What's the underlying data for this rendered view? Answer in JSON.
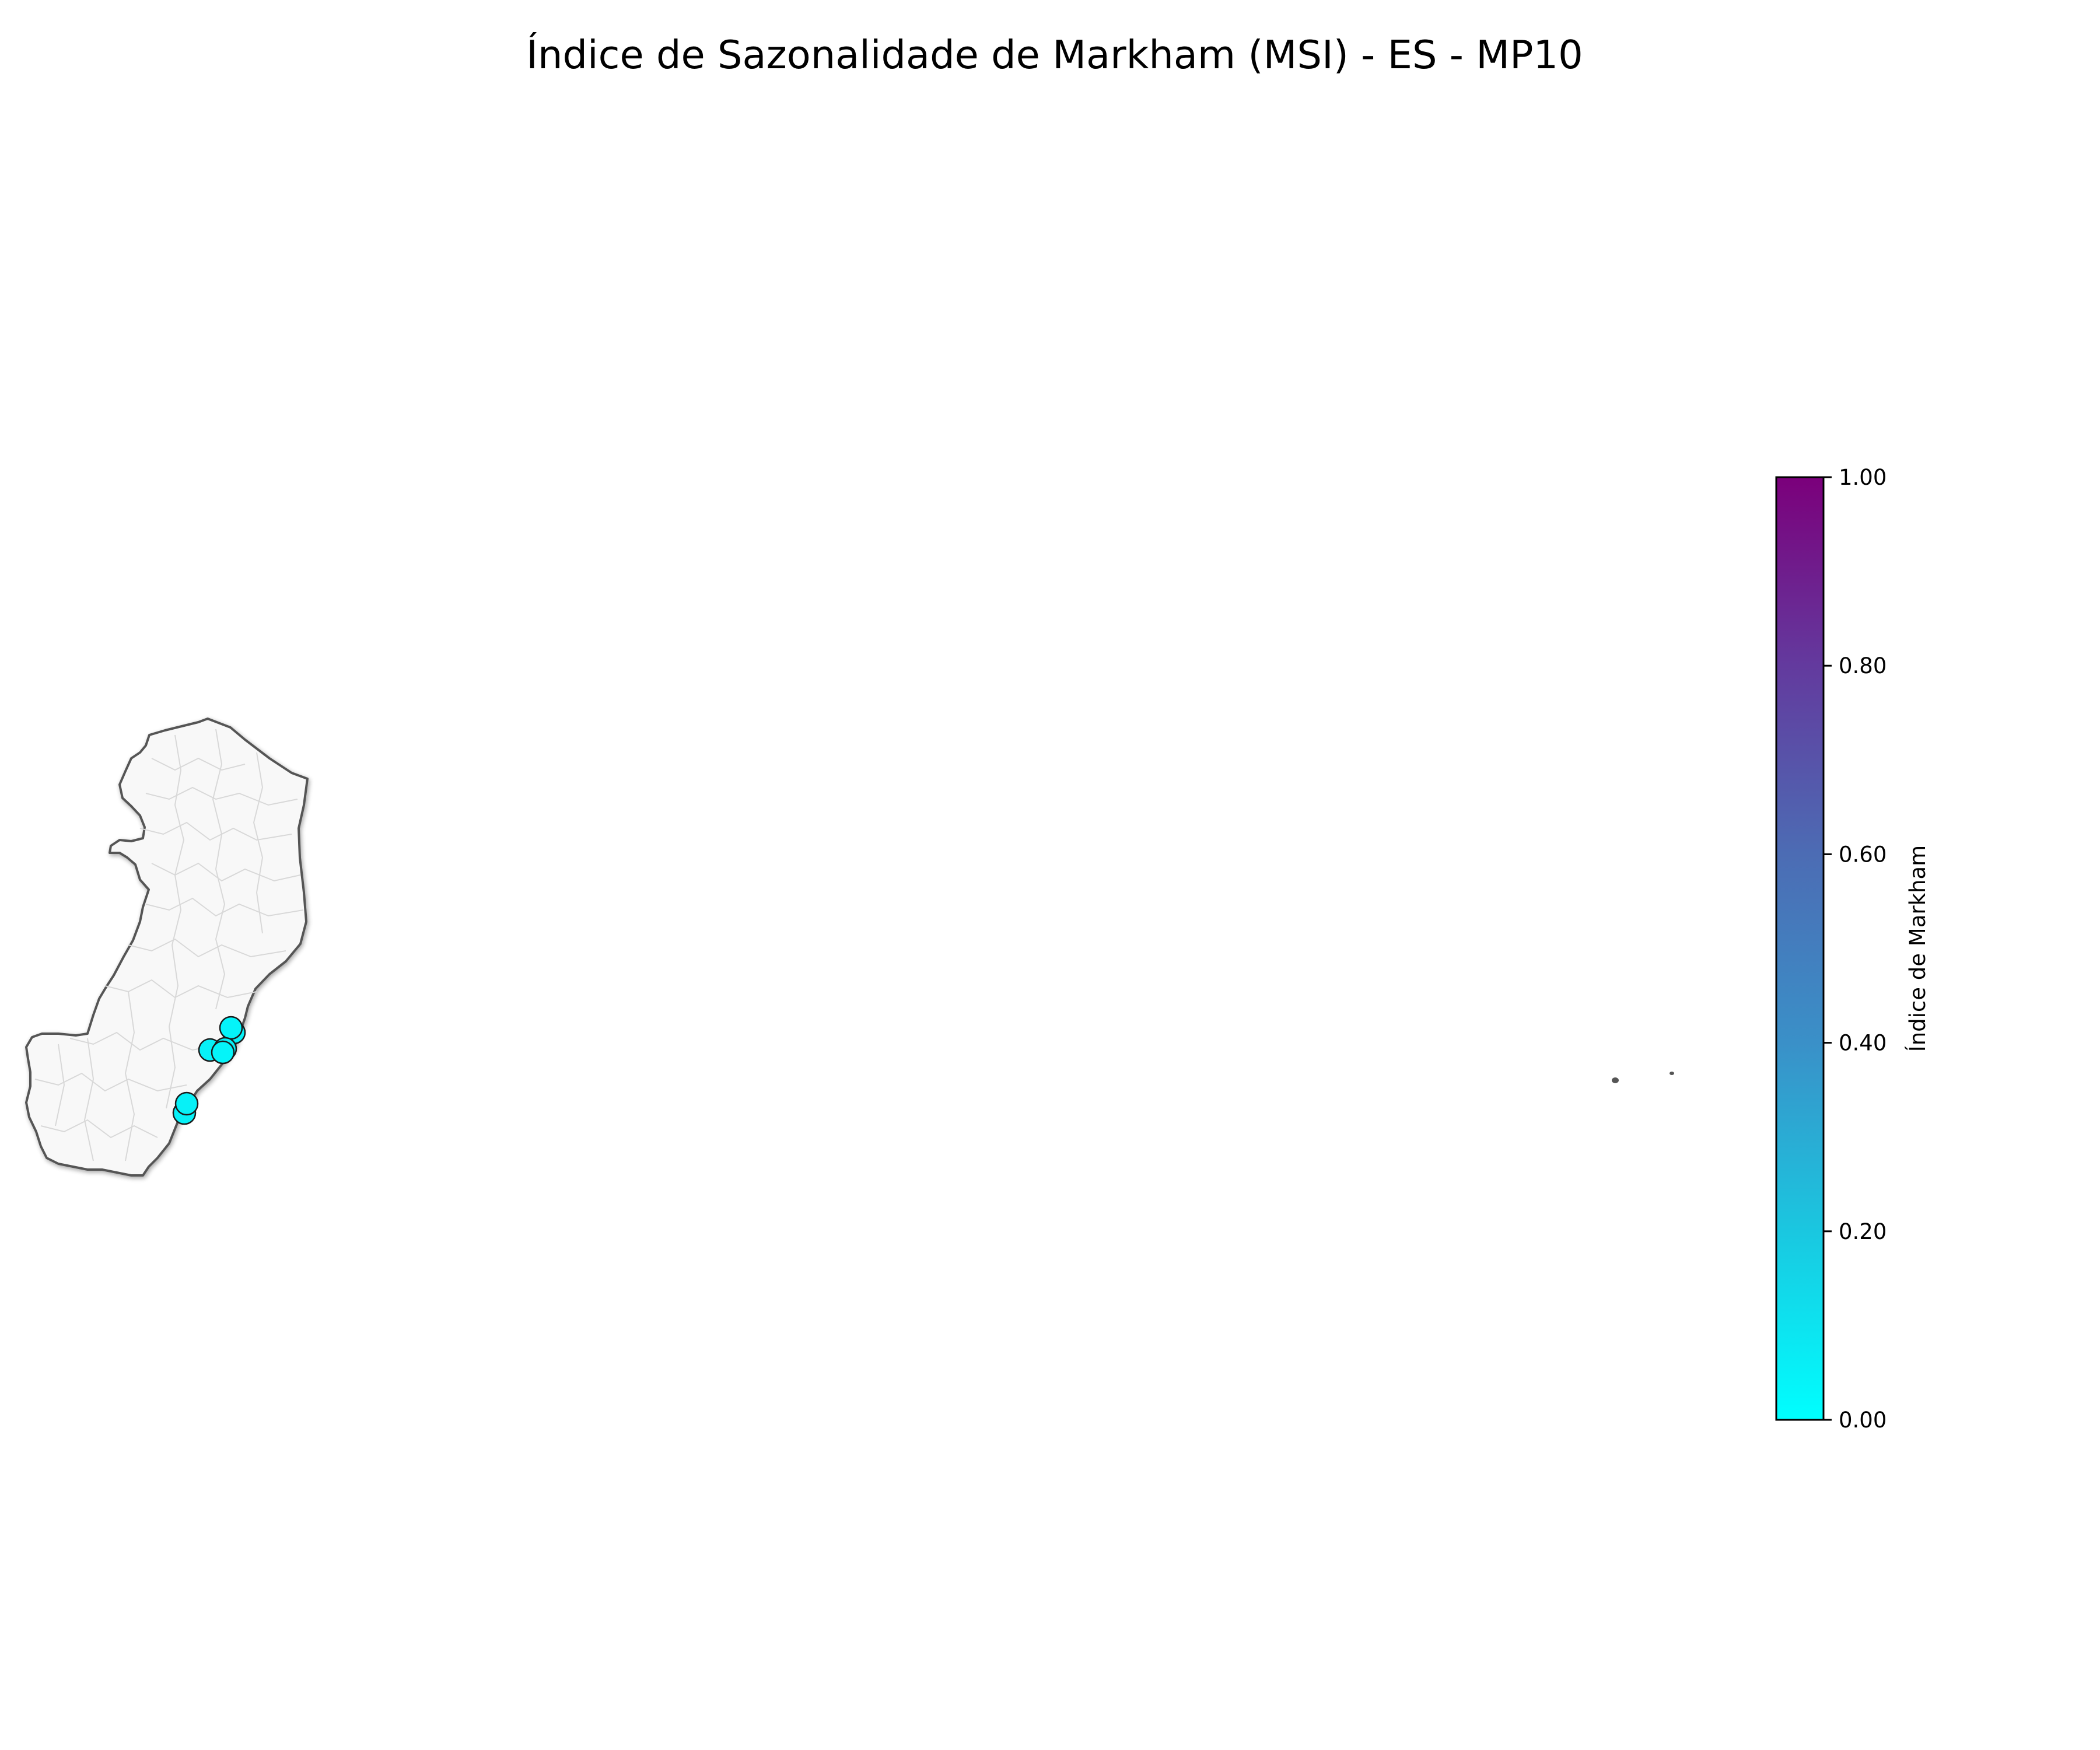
{
  "title": "Índice de Sazonalidade de Markham (MSI) - ES - MP10",
  "colorbar": {
    "label": "Índice de Markham",
    "min": 0,
    "max": 1,
    "ticks": [
      "0.00",
      "0.20",
      "0.40",
      "0.60",
      "0.80",
      "1.00"
    ],
    "color_low": "#00ffff",
    "color_high": "#7b007b"
  },
  "map": {
    "region": "ES",
    "fill_color": "#f8f8f8",
    "border_color": "#555555",
    "internal_border_color": "#d8d8d8"
  },
  "stations": [
    {
      "name": "",
      "value": 0.05
    },
    {
      "name": "",
      "value": 0.04
    },
    {
      "name": "",
      "value": 0.05
    },
    {
      "name": "",
      "value": 0.05
    },
    {
      "name": "",
      "value": 0.04
    },
    {
      "name": "",
      "value": 0.05
    },
    {
      "name": "",
      "value": 0.05
    }
  ]
}
